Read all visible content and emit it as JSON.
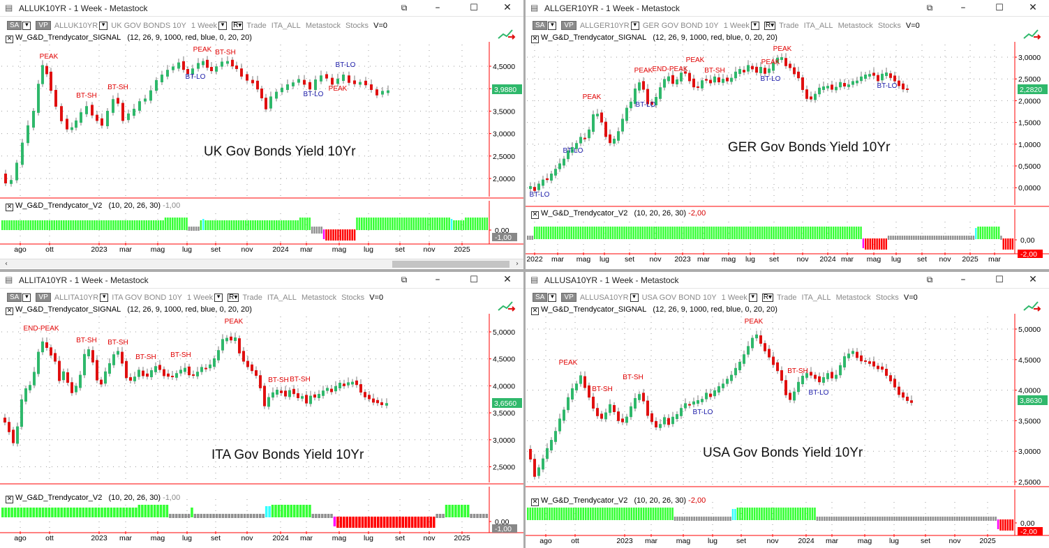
{
  "colors": {
    "up": "#2fb86b",
    "down": "#e01010",
    "gridDot": "#9a9a9a",
    "axisRed": "#ff0000",
    "trendGreen": "#33ff33",
    "trendGrey": "#909090",
    "trendRed": "#ff0000",
    "trendCyan": "#33ffff",
    "trendMagenta": "#ff00ff",
    "labelRed": "#e00000",
    "labelBlue": "#1a1aa8"
  },
  "icons": {
    "app": "chart-icon",
    "restore": "restore-icon",
    "minimize": "minimize-icon",
    "maximize": "maximize-icon",
    "close": "close-icon"
  },
  "windows": [
    {
      "id": "w0",
      "title": "ALLUK10YR - 1 Week - Metastock",
      "toolbar": {
        "sa": "SA",
        "vp": "VP",
        "symbol": "ALLUK10YR",
        "desc": "UK GOV BONDS 10Y",
        "period": "1 Week",
        "r": "R",
        "trade": "Trade",
        "list": "ITA_ALL",
        "source": "Metastock",
        "type": "Stocks",
        "v": "V=0"
      },
      "indicator1": {
        "name": "W_G&D_Trendycator_SIGNAL",
        "params": "(12, 26, 9, 1000, red, blue, 0, 20, 20)"
      },
      "indicator2": {
        "name": "W_G&D_Trendycator_V2",
        "params": "(10, 20, 26, 30)",
        "value": "-1,00"
      },
      "watermark": "UK Gov Bonds Yield 10Yr",
      "priceTag": "3,9880",
      "yLabels": [
        "4,5000",
        "4,0000",
        "3,5000",
        "3,0000",
        "2,5000",
        "2,0000"
      ],
      "osc": {
        "zero": "0,00",
        "tag": "-1,00"
      },
      "xLabels": [
        "ago",
        "ott",
        "2023",
        "mar",
        "mag",
        "lug",
        "set",
        "nov",
        "2024",
        "mar",
        "mag",
        "lug",
        "set",
        "nov",
        "2025"
      ],
      "signals": [
        {
          "text": "PEAK",
          "c": "red"
        },
        {
          "text": "BT-SH",
          "c": "red"
        },
        {
          "text": "BT-SH",
          "c": "red"
        },
        {
          "text": "PEAK",
          "c": "red"
        },
        {
          "text": "BT-SH",
          "c": "red"
        },
        {
          "text": "BT-LO",
          "c": "blue"
        },
        {
          "text": "BT-LO",
          "c": "blue"
        },
        {
          "text": "PEAK",
          "c": "red"
        },
        {
          "text": "BT-LO",
          "c": "blue"
        }
      ]
    },
    {
      "id": "w1",
      "title": "ALLGER10YR - 1 Week - Metastock",
      "toolbar": {
        "sa": "SA",
        "vp": "VP",
        "symbol": "ALLGER10YR",
        "desc": "GER GOV BOND 10Y",
        "period": "1 Week",
        "r": "R",
        "trade": "Trade",
        "list": "ITA_ALL",
        "source": "Metastock",
        "type": "Stocks",
        "v": "V=0"
      },
      "indicator1": {
        "name": "W_G&D_Trendycator_SIGNAL",
        "params": "(12, 26, 9, 1000, red, blue, 0, 20, 20)"
      },
      "indicator2": {
        "name": "W_G&D_Trendycator_V2",
        "params": "(10, 20, 26, 30)",
        "value": "-2,00"
      },
      "watermark": "GER Gov Bonds Yield 10Yr",
      "priceTag": "2,2820",
      "yLabels": [
        "3,0000",
        "2,5000",
        "2,0000",
        "1,5000",
        "1,0000",
        "0,5000",
        "0,0000"
      ],
      "osc": {
        "zero": "0,00",
        "tag": "-2,00"
      },
      "xLabels": [
        "2022",
        "mar",
        "mag",
        "lug",
        "set",
        "nov",
        "2023",
        "mar",
        "mag",
        "lug",
        "set",
        "nov",
        "2024",
        "mar",
        "mag",
        "lug",
        "set",
        "nov",
        "2025",
        "mar"
      ],
      "signals": [
        {
          "text": "BT-LO",
          "c": "blue"
        },
        {
          "text": "BT-LO",
          "c": "blue"
        },
        {
          "text": "PEAK",
          "c": "red"
        },
        {
          "text": "BT-LO",
          "c": "blue"
        },
        {
          "text": "PEAK",
          "c": "red"
        },
        {
          "text": "END-PEAK",
          "c": "red"
        },
        {
          "text": "PEAK",
          "c": "red"
        },
        {
          "text": "BT-SH",
          "c": "red"
        },
        {
          "text": "PEAK",
          "c": "red"
        },
        {
          "text": "BT-LO",
          "c": "blue"
        },
        {
          "text": "PEAK",
          "c": "red"
        },
        {
          "text": "BT-LO",
          "c": "blue"
        }
      ]
    },
    {
      "id": "w2",
      "title": "ALLITA10YR - 1 Week - Metastock",
      "toolbar": {
        "sa": "SA",
        "vp": "VP",
        "symbol": "ALLITA10YR",
        "desc": "ITA GOV BOND 10Y",
        "period": "1 Week",
        "r": "R",
        "trade": "Trade",
        "list": "ITA_ALL",
        "source": "Metastock",
        "type": "Stocks",
        "v": "V=0"
      },
      "indicator1": {
        "name": "W_G&D_Trendycator_SIGNAL",
        "params": "(12, 26, 9, 1000, red, blue, 0, 20, 20)"
      },
      "indicator2": {
        "name": "W_G&D_Trendycator_V2",
        "params": "(10, 20, 26, 30)",
        "value": "-1,00"
      },
      "watermark": "ITA Gov Bonds Yield 10Yr",
      "priceTag": "3,6560",
      "yLabels": [
        "5,0000",
        "4,5000",
        "4,0000",
        "3,5000",
        "3,0000",
        "2,5000"
      ],
      "osc": {
        "zero": "0,00",
        "tag": "-1,00"
      },
      "xLabels": [
        "ago",
        "ott",
        "2023",
        "mar",
        "mag",
        "lug",
        "set",
        "nov",
        "2024",
        "mar",
        "mag",
        "lug",
        "set",
        "nov",
        "2025"
      ],
      "signals": [
        {
          "text": "END-PEAK",
          "c": "red"
        },
        {
          "text": "BT-SH",
          "c": "red"
        },
        {
          "text": "BT-SH",
          "c": "red"
        },
        {
          "text": "BT-SH",
          "c": "red"
        },
        {
          "text": "BT-SH",
          "c": "red"
        },
        {
          "text": "PEAK",
          "c": "red"
        },
        {
          "text": "BT-SH",
          "c": "red"
        },
        {
          "text": "BT-SH",
          "c": "red"
        }
      ]
    },
    {
      "id": "w3",
      "title": "ALLUSA10YR - 1 Week - Metastock",
      "toolbar": {
        "sa": "SA",
        "vp": "VP",
        "symbol": "ALLUSA10YR",
        "desc": "USA GOV BOND 10Y",
        "period": "1 Week",
        "r": "R",
        "trade": "Trade",
        "list": "ITA_ALL",
        "source": "Metastock",
        "type": "Stocks",
        "v": "V=0"
      },
      "indicator1": {
        "name": "W_G&D_Trendycator_SIGNAL",
        "params": "(12, 26, 9, 1000, red, blue, 0, 20, 20)"
      },
      "indicator2": {
        "name": "W_G&D_Trendycator_V2",
        "params": "(10, 20, 26, 30)",
        "value": "-2,00"
      },
      "watermark": "USA Gov Bonds Yield 10Yr",
      "priceTag": "3,8630",
      "yLabels": [
        "5,0000",
        "4,5000",
        "4,0000",
        "3,5000",
        "3,0000",
        "2,5000"
      ],
      "osc": {
        "zero": "0,00",
        "tag": "-2,00"
      },
      "xLabels": [
        "ago",
        "ott",
        "2023",
        "mar",
        "mag",
        "lug",
        "set",
        "nov",
        "2024",
        "mar",
        "mag",
        "lug",
        "set",
        "nov",
        "2025"
      ],
      "signals": [
        {
          "text": "PEAK",
          "c": "red"
        },
        {
          "text": "BT-SH",
          "c": "red"
        },
        {
          "text": "BT-SH",
          "c": "red"
        },
        {
          "text": "PEAK",
          "c": "red"
        },
        {
          "text": "BT-LO",
          "c": "blue"
        },
        {
          "text": "BT-SH",
          "c": "red"
        },
        {
          "text": "BT-LO",
          "c": "blue"
        }
      ]
    }
  ]
}
